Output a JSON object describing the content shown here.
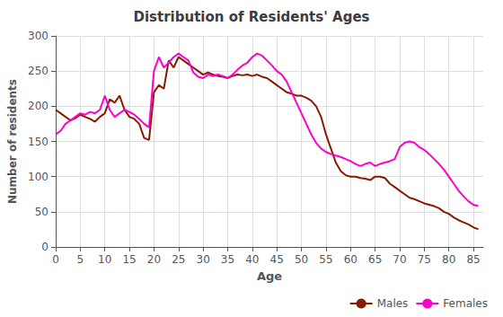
{
  "chart_data": {
    "type": "line",
    "title": "Distribution of Residents' Ages",
    "xlabel": "Age",
    "ylabel": "Number of residents",
    "x": [
      0,
      1,
      2,
      3,
      4,
      5,
      6,
      7,
      8,
      9,
      10,
      11,
      12,
      13,
      14,
      15,
      16,
      17,
      18,
      19,
      20,
      21,
      22,
      23,
      24,
      25,
      26,
      27,
      28,
      29,
      30,
      31,
      32,
      33,
      34,
      35,
      36,
      37,
      38,
      39,
      40,
      41,
      42,
      43,
      44,
      45,
      46,
      47,
      48,
      49,
      50,
      51,
      52,
      53,
      54,
      55,
      56,
      57,
      58,
      59,
      60,
      61,
      62,
      63,
      64,
      65,
      66,
      67,
      68,
      69,
      70,
      71,
      72,
      73,
      74,
      75,
      76,
      77,
      78,
      79,
      80,
      81,
      82,
      83,
      84,
      85,
      86
    ],
    "series": [
      {
        "name": "Males",
        "color": "#8b1a00",
        "values": [
          195,
          190,
          185,
          180,
          183,
          188,
          185,
          182,
          178,
          185,
          190,
          210,
          205,
          215,
          195,
          185,
          182,
          175,
          155,
          152,
          220,
          230,
          225,
          265,
          255,
          270,
          265,
          260,
          255,
          250,
          245,
          248,
          245,
          243,
          242,
          240,
          243,
          245,
          244,
          245,
          243,
          245,
          242,
          240,
          235,
          230,
          225,
          220,
          218,
          215,
          215,
          212,
          208,
          200,
          185,
          160,
          140,
          120,
          108,
          102,
          100,
          100,
          98,
          97,
          95,
          100,
          100,
          98,
          90,
          85,
          80,
          75,
          70,
          68,
          65,
          62,
          60,
          58,
          55,
          50,
          47,
          42,
          38,
          35,
          32,
          28,
          25
        ]
      },
      {
        "name": "Females",
        "color": "#ff00cc",
        "values": [
          160,
          165,
          175,
          180,
          185,
          190,
          188,
          192,
          190,
          195,
          215,
          195,
          185,
          190,
          195,
          192,
          188,
          182,
          175,
          170,
          250,
          270,
          255,
          262,
          270,
          275,
          270,
          265,
          248,
          242,
          240,
          245,
          243,
          245,
          243,
          240,
          245,
          252,
          258,
          262,
          270,
          275,
          272,
          265,
          258,
          250,
          245,
          235,
          220,
          205,
          190,
          175,
          160,
          148,
          140,
          135,
          132,
          130,
          128,
          125,
          122,
          118,
          115,
          118,
          120,
          115,
          118,
          120,
          122,
          125,
          142,
          148,
          150,
          148,
          142,
          138,
          132,
          125,
          118,
          110,
          100,
          90,
          80,
          72,
          65,
          60,
          58
        ]
      }
    ],
    "xlim": [
      0,
      87
    ],
    "xticks": [
      0,
      5,
      10,
      15,
      20,
      25,
      30,
      35,
      40,
      45,
      50,
      55,
      60,
      65,
      70,
      75,
      80,
      85
    ],
    "ylim": [
      0,
      300
    ],
    "yticks": [
      0,
      50,
      100,
      150,
      200,
      250,
      300
    ],
    "grid": true,
    "legend": "lower right"
  }
}
